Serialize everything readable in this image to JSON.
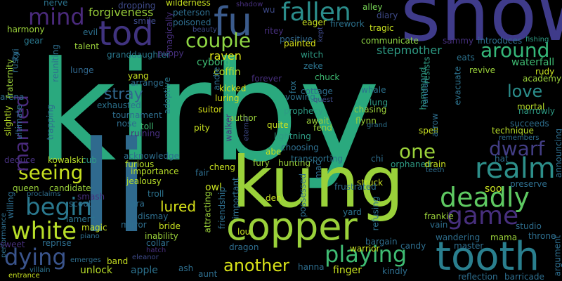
{
  "words": [
    {
      "text": "kirby",
      "color": "#2aa97e"
    },
    {
      "text": "li",
      "color": "#2f6a8e"
    },
    {
      "text": "snow",
      "color": "#3f3b8a"
    },
    {
      "text": "kung",
      "color": "#9ad13a"
    },
    {
      "text": "copper",
      "color": "#9ad13a"
    },
    {
      "text": "fu",
      "color": "#3b5b8c"
    },
    {
      "text": "tod",
      "color": "#40337f"
    },
    {
      "text": "tooth",
      "color": "#2a7f8e"
    },
    {
      "text": "fallen",
      "color": "#2b8d8b"
    },
    {
      "text": "deadly",
      "color": "#5ec962"
    },
    {
      "text": "mind",
      "color": "#4a2a7c"
    },
    {
      "text": "couple",
      "color": "#8fd744"
    },
    {
      "text": "around",
      "color": "#35b779"
    },
    {
      "text": "realm",
      "color": "#2d8f8a"
    },
    {
      "text": "seeing",
      "color": "#c7e020"
    },
    {
      "text": "white",
      "color": "#b8de29"
    },
    {
      "text": "begin",
      "color": "#2a788e"
    },
    {
      "text": "dying",
      "color": "#3a548c"
    },
    {
      "text": "married",
      "color": "#4a2a7c"
    },
    {
      "text": "game",
      "color": "#472f7d"
    },
    {
      "text": "playing",
      "color": "#3fbc73"
    },
    {
      "text": "another",
      "color": "#d8e219"
    },
    {
      "text": "dwarf",
      "color": "#433e85"
    },
    {
      "text": "one",
      "color": "#9ad13a"
    },
    {
      "text": "love",
      "color": "#2b8d8b"
    },
    {
      "text": "stray",
      "color": "#31688e"
    },
    {
      "text": "stepmother",
      "color": "#2e9b84"
    },
    {
      "text": "lured",
      "color": "#d8e219"
    },
    {
      "text": "forgiveness",
      "color": "#9ad13a"
    },
    {
      "text": "raven",
      "color": "#dde318"
    },
    {
      "text": "cyborg",
      "color": "#3fbc73"
    },
    {
      "text": "coffin",
      "color": "#b8de29"
    },
    {
      "text": "waterfall",
      "color": "#3fbc73"
    },
    {
      "text": "nerve",
      "color": "#2c738e"
    },
    {
      "text": "harmony",
      "color": "#9ad13a"
    },
    {
      "text": "gear",
      "color": "#2a788e"
    },
    {
      "text": "talent",
      "color": "#9ad13a"
    },
    {
      "text": "granddaughter",
      "color": "#2a788e"
    },
    {
      "text": "evil",
      "color": "#2d708e"
    },
    {
      "text": "magically",
      "color": "#472f7d"
    },
    {
      "text": "peterson",
      "color": "#2e6e8e"
    },
    {
      "text": "poisoned",
      "color": "#2e6e8e"
    },
    {
      "text": "wilderness",
      "color": "#c7e020"
    },
    {
      "text": "dropping",
      "color": "#3e4a89"
    },
    {
      "text": "smile",
      "color": "#3e4a89"
    },
    {
      "text": "puppy",
      "color": "#46307e"
    },
    {
      "text": "alley",
      "color": "#75d054"
    },
    {
      "text": "diary",
      "color": "#3e4a89"
    },
    {
      "text": "tragic",
      "color": "#c7e020"
    },
    {
      "text": "wu",
      "color": "#3e4a89"
    },
    {
      "text": "firework",
      "color": "#2c728e"
    },
    {
      "text": "positive",
      "color": "#31688e"
    },
    {
      "text": "painted",
      "color": "#d8e219"
    },
    {
      "text": "witch",
      "color": "#2e9b84"
    },
    {
      "text": "zeke",
      "color": "#2c738e"
    },
    {
      "text": "chuck",
      "color": "#3fbc73"
    },
    {
      "text": "communicate",
      "color": "#8fd744"
    },
    {
      "text": "eats",
      "color": "#2c728e"
    },
    {
      "text": "revive",
      "color": "#9ad13a"
    },
    {
      "text": "introduces",
      "color": "#2e6e8e"
    },
    {
      "text": "fishing",
      "color": "#2e9b84"
    },
    {
      "text": "sammy",
      "color": "#46307e"
    },
    {
      "text": "rudy",
      "color": "#c7e020"
    },
    {
      "text": "academy",
      "color": "#9ad13a"
    },
    {
      "text": "lunge",
      "color": "#31688e"
    },
    {
      "text": "yang",
      "color": "#c7e020"
    },
    {
      "text": "arrange",
      "color": "#2e6e8e"
    },
    {
      "text": "exhausted",
      "color": "#2c728e"
    },
    {
      "text": "adoptive",
      "color": "#2a788e"
    },
    {
      "text": "tournament",
      "color": "#2e6e8e"
    },
    {
      "text": "nose",
      "color": "#2e6e8e"
    },
    {
      "text": "toll",
      "color": "#3fbc73"
    },
    {
      "text": "ruining",
      "color": "#472f7d"
    },
    {
      "text": "arena",
      "color": "#2e6e8e"
    },
    {
      "text": "fraternity",
      "color": "#9ad13a"
    },
    {
      "text": "slightly",
      "color": "#b8de29"
    },
    {
      "text": "ultimate",
      "color": "#2e6e8e"
    },
    {
      "text": "trapping",
      "color": "#2e6e8e"
    },
    {
      "text": "kicked",
      "color": "#d8e219"
    },
    {
      "text": "luring",
      "color": "#d8e219"
    },
    {
      "text": "suitor",
      "color": "#d8e219"
    },
    {
      "text": "author",
      "color": "#9ad13a"
    },
    {
      "text": "pity",
      "color": "#c7e020"
    },
    {
      "text": "walker",
      "color": "#472f7d"
    },
    {
      "text": "eternal",
      "color": "#3e4a89"
    },
    {
      "text": "andie",
      "color": "#2e6e8e"
    },
    {
      "text": "cottage",
      "color": "#2e6e8e"
    },
    {
      "text": "vowing",
      "color": "#2c728e"
    },
    {
      "text": "quest",
      "color": "#3e4a89"
    },
    {
      "text": "prophecy",
      "color": "#2e9b84"
    },
    {
      "text": "await",
      "color": "#9ad13a"
    },
    {
      "text": "fend",
      "color": "#9ad13a"
    },
    {
      "text": "lightning",
      "color": "#2e9b84"
    },
    {
      "text": "quite",
      "color": "#c7e020"
    },
    {
      "text": "choosing",
      "color": "#2e6e8e"
    },
    {
      "text": "whale",
      "color": "#2c728e"
    },
    {
      "text": "lung",
      "color": "#2e9b84"
    },
    {
      "text": "chasing",
      "color": "#9ad13a"
    },
    {
      "text": "flynn",
      "color": "#9ad13a"
    },
    {
      "text": "grand",
      "color": "#2c728e"
    },
    {
      "text": "hammond",
      "color": "#2e9b84"
    },
    {
      "text": "randall",
      "color": "#2c728e"
    },
    {
      "text": "resists",
      "color": "#2e9b84"
    },
    {
      "text": "spell",
      "color": "#c7e020"
    },
    {
      "text": "arrow",
      "color": "#2e6e8e"
    },
    {
      "text": "evacuate",
      "color": "#2c728e"
    },
    {
      "text": "mortal",
      "color": "#b8de29"
    },
    {
      "text": "narrowly",
      "color": "#2e9b84"
    },
    {
      "text": "succeeds",
      "color": "#2e6e8e"
    },
    {
      "text": "technique",
      "color": "#b8de29"
    },
    {
      "text": "remembers",
      "color": "#2e6e8e"
    },
    {
      "text": "hat",
      "color": "#2e6e8e"
    },
    {
      "text": "announcing",
      "color": "#2e6e8e"
    },
    {
      "text": "preserve",
      "color": "#2e6e8e"
    },
    {
      "text": "ritey",
      "color": "#472f7d"
    },
    {
      "text": "kept",
      "color": "#3e4a89"
    },
    {
      "text": "forever",
      "color": "#472f7d"
    },
    {
      "text": "fox",
      "color": "#2c728e"
    },
    {
      "text": "eager",
      "color": "#c7e020"
    },
    {
      "text": "beauty",
      "color": "#3e4a89"
    },
    {
      "text": "rusty",
      "color": "#2e6e8e"
    },
    {
      "text": "kai",
      "color": "#2e6e8e"
    },
    {
      "text": "reuniting",
      "color": "#2e6e8e"
    },
    {
      "text": "cub",
      "color": "#2e9b84"
    },
    {
      "text": "kowalski",
      "color": "#b8de29"
    },
    {
      "text": "acknowledge",
      "color": "#2e6e8e"
    },
    {
      "text": "furious",
      "color": "#b8de29"
    },
    {
      "text": "importance",
      "color": "#b8de29"
    },
    {
      "text": "jealousy",
      "color": "#b8de29"
    },
    {
      "text": "fair",
      "color": "#2e6e8e"
    },
    {
      "text": "cheng",
      "color": "#c7e020"
    },
    {
      "text": "owl",
      "color": "#c7e020"
    },
    {
      "text": "fury",
      "color": "#9ad13a"
    },
    {
      "text": "hunting",
      "color": "#9ad13a"
    },
    {
      "text": "transporting",
      "color": "#2c728e"
    },
    {
      "text": "abe",
      "color": "#c7e020"
    },
    {
      "text": "chi",
      "color": "#2e6e8e"
    },
    {
      "text": "orphaned",
      "color": "#2e9b84"
    },
    {
      "text": "drain",
      "color": "#c7e020"
    },
    {
      "text": "teeth",
      "color": "#2e6e8e"
    },
    {
      "text": "struck",
      "color": "#c7e020"
    },
    {
      "text": "frustrated",
      "color": "#2e6e8e"
    },
    {
      "text": "deduce",
      "color": "#46307e"
    },
    {
      "text": "queen",
      "color": "#9ad13a"
    },
    {
      "text": "willing",
      "color": "#2e6e8e"
    },
    {
      "text": "proclaims",
      "color": "#2e6e8e"
    },
    {
      "text": "candidate",
      "color": "#9ad13a"
    },
    {
      "text": "scout",
      "color": "#2e6e8e"
    },
    {
      "text": "smash",
      "color": "#472f7d"
    },
    {
      "text": "troll",
      "color": "#2c728e"
    },
    {
      "text": "sara",
      "color": "#2e6e8e"
    },
    {
      "text": "dismay",
      "color": "#2e6e8e"
    },
    {
      "text": "bride",
      "color": "#c7e020"
    },
    {
      "text": "mirror",
      "color": "#2e6e8e"
    },
    {
      "text": "lament",
      "color": "#2c728e"
    },
    {
      "text": "magic",
      "color": "#c7e020"
    },
    {
      "text": "performance",
      "color": "#2e6e8e"
    },
    {
      "text": "reprise",
      "color": "#2e6e8e"
    },
    {
      "text": "sweet",
      "color": "#472f7d"
    },
    {
      "text": "piano",
      "color": "#2e6e8e"
    },
    {
      "text": "entrance",
      "color": "#c7e020"
    },
    {
      "text": "villain",
      "color": "#2c728e"
    },
    {
      "text": "emerges",
      "color": "#2e6e8e"
    },
    {
      "text": "band",
      "color": "#c7e020"
    },
    {
      "text": "eleanor",
      "color": "#3e4a89"
    },
    {
      "text": "inability",
      "color": "#9ad13a"
    },
    {
      "text": "collar",
      "color": "#2e6e8e"
    },
    {
      "text": "hatch",
      "color": "#472f7d"
    },
    {
      "text": "apple",
      "color": "#2c728e"
    },
    {
      "text": "unlock",
      "color": "#b8de29"
    },
    {
      "text": "ash",
      "color": "#2e6e8e"
    },
    {
      "text": "aunt",
      "color": "#2e6e8e"
    },
    {
      "text": "friendship",
      "color": "#2e6e8e"
    },
    {
      "text": "attracting",
      "color": "#9ad13a"
    },
    {
      "text": "important",
      "color": "#2e6e8e"
    },
    {
      "text": "possessed",
      "color": "#2e6e8e"
    },
    {
      "text": "den",
      "color": "#c7e020"
    },
    {
      "text": "lou",
      "color": "#c7e020"
    },
    {
      "text": "dragon",
      "color": "#2e6e8e"
    },
    {
      "text": "hanna",
      "color": "#2e6e8e"
    },
    {
      "text": "mac",
      "color": "#2e6e8e"
    },
    {
      "text": "yard",
      "color": "#2c728e"
    },
    {
      "text": "refusing",
      "color": "#2c728e"
    },
    {
      "text": "bargain",
      "color": "#2e6e8e"
    },
    {
      "text": "warrior",
      "color": "#c7e020"
    },
    {
      "text": "finger",
      "color": "#c7e020"
    },
    {
      "text": "kindly",
      "color": "#2e6e8e"
    },
    {
      "text": "candy",
      "color": "#2e6e8e"
    },
    {
      "text": "frankie",
      "color": "#9ad13a"
    },
    {
      "text": "vain",
      "color": "#2e6e8e"
    },
    {
      "text": "soo",
      "color": "#c7e020"
    },
    {
      "text": "wandering",
      "color": "#2e6e8e"
    },
    {
      "text": "master",
      "color": "#2e6e8e"
    },
    {
      "text": "mama",
      "color": "#9ad13a"
    },
    {
      "text": "studio",
      "color": "#2e6e8e"
    },
    {
      "text": "throne",
      "color": "#2e6e8e"
    },
    {
      "text": "argument",
      "color": "#2e6e8e"
    },
    {
      "text": "reflection",
      "color": "#2e6e8e"
    },
    {
      "text": "barricade",
      "color": "#2e6e8e"
    },
    {
      "text": "shadow",
      "color": "#472f7d"
    }
  ]
}
